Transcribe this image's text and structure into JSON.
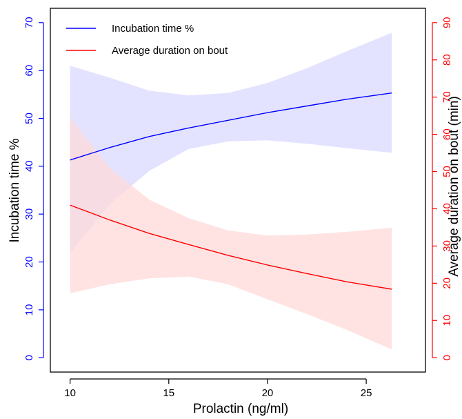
{
  "chart_data": {
    "type": "line",
    "title": "",
    "xlabel": "Prolactin (ng/ml)",
    "ylabel_left": "Incubation time %",
    "ylabel_right": "Average duration on bout (min)",
    "xlim": [
      9,
      28
    ],
    "ylim_left": [
      -3,
      73
    ],
    "ylim_right": [
      -3.86,
      93.86
    ],
    "x_ticks": [
      10,
      15,
      20,
      25
    ],
    "y_ticks_left": [
      0,
      10,
      20,
      30,
      40,
      50,
      60,
      70
    ],
    "y_ticks_right": [
      0,
      10,
      20,
      30,
      40,
      50,
      60,
      70,
      80,
      90
    ],
    "left_axis_color": "#0000ff",
    "right_axis_color": "#ff0000",
    "grid": false,
    "legend_position": "top-left",
    "series": [
      {
        "name": "Incubation time %",
        "axis": "left",
        "color": "#0000ff",
        "band_color": "#d9d9ff",
        "x": [
          10,
          12,
          14,
          16,
          18,
          20,
          22,
          24,
          26.3
        ],
        "y": [
          41.3,
          43.9,
          46.2,
          48.0,
          49.6,
          51.2,
          52.6,
          54.0,
          55.3
        ],
        "lower": [
          21.8,
          32.0,
          39.0,
          43.6,
          45.2,
          45.4,
          44.7,
          43.8,
          42.8
        ],
        "upper": [
          61.0,
          58.5,
          55.8,
          54.8,
          55.3,
          57.4,
          60.5,
          64.0,
          67.9
        ]
      },
      {
        "name": "Average duration on bout",
        "axis": "right",
        "color": "#ff0000",
        "band_color": "#ffd9d9",
        "x": [
          10,
          12,
          14,
          16,
          18,
          20,
          22,
          24,
          26.3
        ],
        "y": [
          41.0,
          37.0,
          33.4,
          30.4,
          27.5,
          24.9,
          22.6,
          20.4,
          18.4
        ],
        "lower": [
          17.3,
          19.7,
          21.3,
          21.8,
          19.7,
          15.7,
          11.7,
          7.5,
          2.2
        ],
        "upper": [
          64.5,
          51.0,
          42.5,
          37.5,
          34.2,
          32.8,
          33.1,
          33.8,
          34.9
        ]
      }
    ]
  }
}
